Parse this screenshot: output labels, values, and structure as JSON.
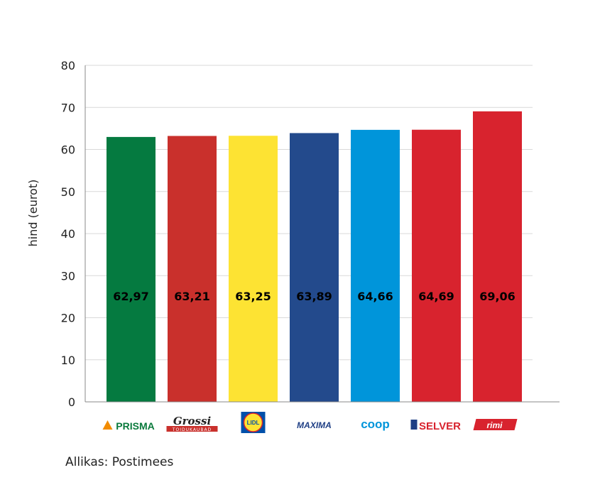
{
  "chart_data": {
    "type": "bar",
    "ylabel": "hind (eurot)",
    "ylim": [
      0,
      80
    ],
    "yticks": [
      "0",
      "10",
      "20",
      "30",
      "40",
      "50",
      "60",
      "70",
      "80"
    ],
    "grid": true,
    "categories": [
      "PRISMA",
      "Grossi",
      "Lidl",
      "MAXIMA",
      "coop",
      "SELVER",
      "rimi"
    ],
    "values": [
      62.97,
      63.21,
      63.25,
      63.89,
      64.66,
      64.69,
      69.06
    ],
    "data_labels": [
      "62,97",
      "63,21",
      "63,25",
      "63,89",
      "64,66",
      "64,69",
      "69,06"
    ],
    "colors": [
      "#057a40",
      "#c9302c",
      "#fde333",
      "#234a8c",
      "#0095da",
      "#d8232e",
      "#d8232e"
    ]
  },
  "logos": [
    {
      "text": "PRISMA",
      "icon": "prisma-logo",
      "color": "#0a7a3c"
    },
    {
      "text": "Grossi",
      "subtext": "TOIDUKAUBAD",
      "icon": "grossi-logo",
      "color": "#c9302c"
    },
    {
      "text": "LIDL",
      "icon": "lidl-logo",
      "color": "#0050aa"
    },
    {
      "text": "MAXIMA",
      "icon": "maxima-logo",
      "color": "#1f3f85"
    },
    {
      "text": "coop",
      "icon": "coop-logo",
      "color": "#0095da"
    },
    {
      "text": "SELVER",
      "icon": "selver-logo",
      "color": "#d8232e"
    },
    {
      "text": "rimi",
      "icon": "rimi-logo",
      "color": "#d8232e"
    }
  ],
  "source": "Allikas: Postimees"
}
